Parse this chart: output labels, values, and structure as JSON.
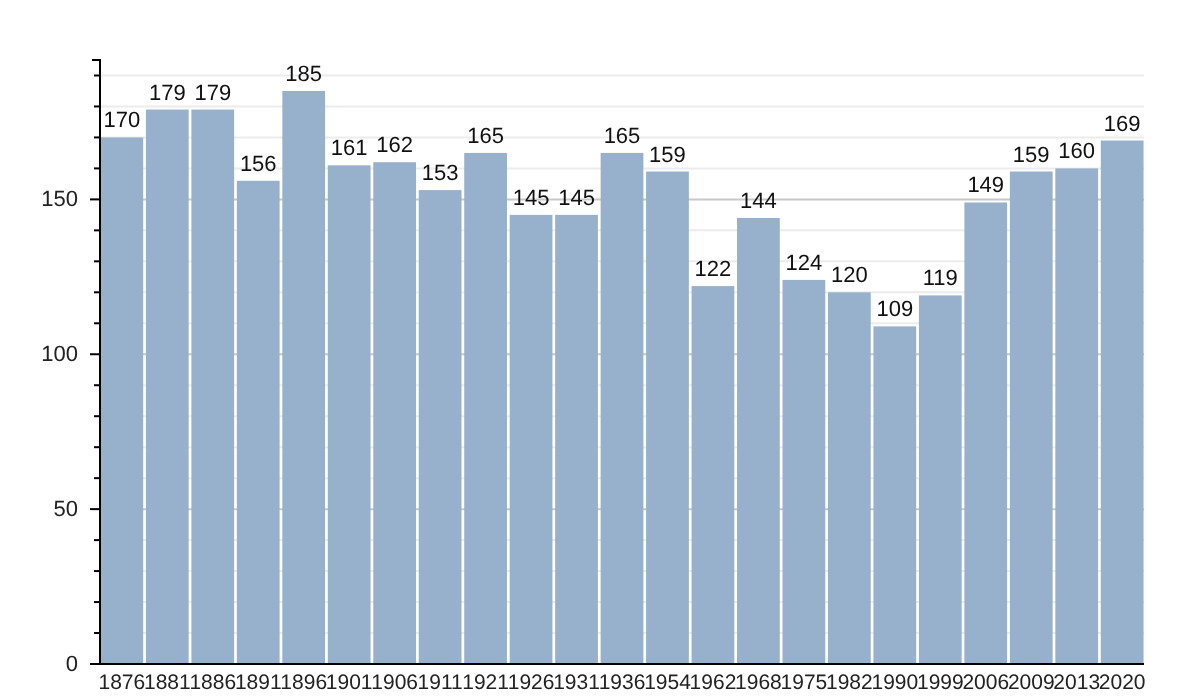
{
  "chart_data": {
    "type": "bar",
    "categories": [
      "1876",
      "1881",
      "1886",
      "1891",
      "1896",
      "1901",
      "1906",
      "1911",
      "1921",
      "1926",
      "1931",
      "1936",
      "1954",
      "1962",
      "1968",
      "1975",
      "1982",
      "1990",
      "1999",
      "2006",
      "2009",
      "2013",
      "2020"
    ],
    "values": [
      170,
      179,
      179,
      156,
      185,
      161,
      162,
      153,
      165,
      145,
      145,
      165,
      159,
      122,
      144,
      124,
      120,
      109,
      119,
      149,
      159,
      160,
      169
    ],
    "color": "#97b0cc",
    "data_labels": true,
    "grid": "y",
    "ylim": [
      0,
      195
    ],
    "yticks": [
      0,
      {
        "value": 10,
        "label": null
      },
      {
        "value": 20,
        "label": null
      },
      {
        "value": 30,
        "label": null
      },
      {
        "value": 40,
        "label": null
      },
      50,
      {
        "value": 60,
        "label": null
      },
      {
        "value": 70,
        "label": null
      },
      {
        "value": 80,
        "label": null
      },
      {
        "value": 90,
        "label": null
      },
      100,
      {
        "value": 110,
        "label": null
      },
      {
        "value": 120,
        "label": null
      },
      {
        "value": 130,
        "label": null
      },
      {
        "value": 140,
        "label": null
      },
      150,
      {
        "value": 160,
        "label": null
      },
      {
        "value": 170,
        "label": null
      },
      {
        "value": 180,
        "label": null
      },
      {
        "value": 190,
        "label": null
      }
    ]
  }
}
